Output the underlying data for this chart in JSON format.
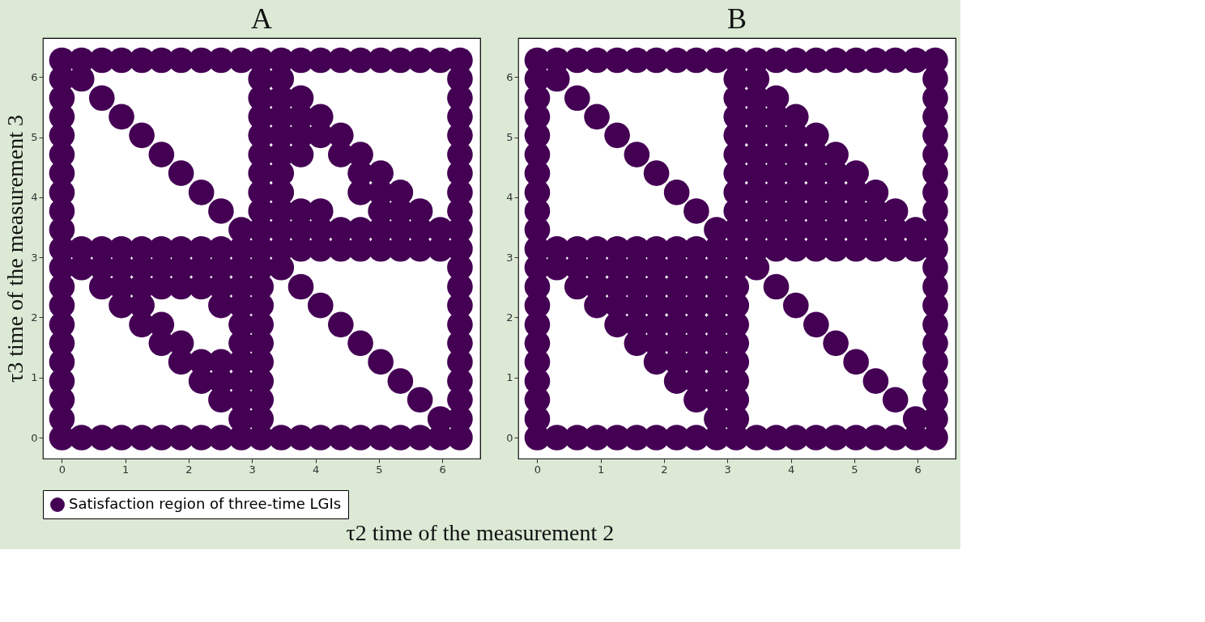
{
  "chart_data": [
    {
      "type": "scatter",
      "title": "A",
      "ylabel": "τ3 time of the measurement 3",
      "xlabel": "τ2 time of the measurement 2",
      "xlim": [
        -0.3,
        6.6
      ],
      "ylim": [
        -0.35,
        6.65
      ],
      "xticks": [
        0,
        1,
        2,
        3,
        4,
        5,
        6
      ],
      "yticks": [
        0,
        1,
        2,
        3,
        4,
        5,
        6
      ],
      "grid": false,
      "marker": "circle",
      "legend": "bottom",
      "series": [
        {
          "name": "Satisfaction region of three-time LGIs",
          "color": "#440154",
          "x": [
            0,
            0,
            0,
            0,
            0,
            0,
            0,
            0,
            0,
            0,
            0,
            0,
            0,
            0,
            0,
            0,
            0,
            0,
            0,
            0,
            0,
            0.31,
            0.31,
            0.31,
            0.31,
            0.31,
            0.63,
            0.63,
            0.63,
            0.63,
            0.63,
            0.63,
            0.94,
            0.94,
            0.94,
            0.94,
            0.94,
            0.94,
            0.94,
            1.26,
            1.26,
            1.26,
            1.26,
            1.26,
            1.26,
            1.26,
            1.26,
            1.57,
            1.57,
            1.57,
            1.57,
            1.57,
            1.57,
            1.57,
            1.57,
            1.88,
            1.88,
            1.88,
            1.88,
            1.88,
            1.88,
            1.88,
            1.88,
            2.2,
            2.2,
            2.2,
            2.2,
            2.2,
            2.2,
            2.2,
            2.2,
            2.51,
            2.51,
            2.51,
            2.51,
            2.51,
            2.51,
            2.51,
            2.51,
            2.51,
            2.51,
            2.83,
            2.83,
            2.83,
            2.83,
            2.83,
            2.83,
            2.83,
            2.83,
            2.83,
            2.83,
            2.83,
            2.83,
            2.83,
            3.14,
            3.14,
            3.14,
            3.14,
            3.14,
            3.14,
            3.14,
            3.14,
            3.14,
            3.14,
            3.14,
            3.14,
            3.14,
            3.14,
            3.14,
            3.14,
            3.14,
            3.14,
            3.14,
            3.14,
            3.14,
            3.46,
            3.46,
            3.46,
            3.46,
            3.46,
            3.46,
            3.46,
            3.46,
            3.46,
            3.46,
            3.46,
            3.46,
            3.46,
            3.77,
            3.77,
            3.77,
            3.77,
            3.77,
            3.77,
            3.77,
            3.77,
            3.77,
            3.77,
            4.08,
            4.08,
            4.08,
            4.08,
            4.08,
            4.08,
            4.08,
            4.08,
            4.4,
            4.4,
            4.4,
            4.4,
            4.4,
            4.4,
            4.4,
            4.71,
            4.71,
            4.71,
            4.71,
            4.71,
            4.71,
            4.71,
            4.71,
            5.03,
            5.03,
            5.03,
            5.03,
            5.03,
            5.03,
            5.03,
            5.03,
            5.34,
            5.34,
            5.34,
            5.34,
            5.34,
            5.34,
            5.34,
            5.65,
            5.65,
            5.65,
            5.65,
            5.65,
            5.65,
            5.97,
            5.97,
            5.97,
            5.97,
            5.97,
            6.28,
            6.28,
            6.28,
            6.28,
            6.28,
            6.28,
            6.28,
            6.28,
            6.28,
            6.28,
            6.28,
            6.28,
            6.28,
            6.28,
            6.28,
            6.28,
            6.28,
            6.28,
            6.28,
            6.28,
            6.28
          ],
          "values": [
            0,
            0.31,
            0.63,
            0.94,
            1.26,
            1.57,
            1.88,
            2.2,
            2.51,
            2.83,
            3.14,
            3.46,
            3.77,
            4.08,
            4.4,
            4.71,
            5.03,
            5.34,
            5.65,
            5.97,
            6.28,
            0,
            2.83,
            3.14,
            5.97,
            6.28,
            0,
            2.51,
            2.83,
            3.14,
            5.65,
            6.28,
            0,
            2.2,
            2.51,
            2.83,
            3.14,
            5.34,
            6.28,
            0,
            1.88,
            2.2,
            2.51,
            2.83,
            3.14,
            5.03,
            6.28,
            0,
            1.57,
            1.88,
            2.51,
            2.83,
            3.14,
            4.71,
            6.28,
            0,
            1.26,
            1.57,
            2.51,
            2.83,
            3.14,
            4.4,
            6.28,
            0,
            0.94,
            1.26,
            2.51,
            2.83,
            3.14,
            4.08,
            6.28,
            0,
            0.63,
            0.94,
            1.26,
            2.2,
            2.51,
            2.83,
            3.14,
            3.77,
            6.28,
            0,
            0.31,
            0.63,
            0.94,
            1.26,
            1.57,
            1.88,
            2.2,
            2.51,
            2.83,
            3.14,
            3.46,
            6.28,
            0,
            0.31,
            0.63,
            0.94,
            1.26,
            1.57,
            1.88,
            2.2,
            2.51,
            2.83,
            3.14,
            3.46,
            3.77,
            4.08,
            4.4,
            4.71,
            5.03,
            5.34,
            5.65,
            5.97,
            6.28,
            0,
            2.83,
            3.14,
            3.46,
            3.77,
            4.08,
            4.4,
            4.71,
            5.03,
            5.34,
            5.65,
            5.97,
            6.28,
            0,
            2.51,
            3.14,
            3.46,
            3.77,
            4.71,
            5.03,
            5.34,
            5.65,
            6.28,
            0,
            2.2,
            3.14,
            3.46,
            3.77,
            5.03,
            5.34,
            6.28,
            0,
            1.88,
            3.14,
            3.46,
            4.71,
            5.03,
            6.28,
            0,
            1.57,
            3.14,
            3.46,
            4.08,
            4.4,
            4.71,
            6.28,
            0,
            1.26,
            3.14,
            3.46,
            3.77,
            4.08,
            4.4,
            6.28,
            0,
            0.94,
            3.14,
            3.46,
            3.77,
            4.08,
            6.28,
            0,
            0.63,
            3.14,
            3.46,
            3.77,
            6.28,
            0,
            0.31,
            3.14,
            3.46,
            6.28,
            0,
            0.31,
            0.63,
            0.94,
            1.26,
            1.57,
            1.88,
            2.2,
            2.51,
            2.83,
            3.14,
            3.46,
            3.77,
            4.08,
            4.4,
            4.71,
            5.03,
            5.34,
            5.65,
            5.97,
            6.28
          ]
        }
      ]
    },
    {
      "type": "scatter",
      "title": "B",
      "xlim": [
        -0.3,
        6.6
      ],
      "ylim": [
        -0.35,
        6.65
      ],
      "xticks": [
        0,
        1,
        2,
        3,
        4,
        5,
        6
      ],
      "yticks": [
        0,
        1,
        2,
        3,
        4,
        5,
        6
      ],
      "grid": false,
      "marker": "circle",
      "series": [
        {
          "color": "#440154",
          "x": [
            0,
            0,
            0,
            0,
            0,
            0,
            0,
            0,
            0,
            0,
            0,
            0,
            0,
            0,
            0,
            0,
            0,
            0,
            0,
            0,
            0,
            0.31,
            0.31,
            0.31,
            0.31,
            0.31,
            0.63,
            0.63,
            0.63,
            0.63,
            0.63,
            0.63,
            0.94,
            0.94,
            0.94,
            0.94,
            0.94,
            0.94,
            0.94,
            1.26,
            1.26,
            1.26,
            1.26,
            1.26,
            1.26,
            1.26,
            1.26,
            1.57,
            1.57,
            1.57,
            1.57,
            1.57,
            1.57,
            1.57,
            1.57,
            1.57,
            1.88,
            1.88,
            1.88,
            1.88,
            1.88,
            1.88,
            1.88,
            1.88,
            1.88,
            1.88,
            2.2,
            2.2,
            2.2,
            2.2,
            2.2,
            2.2,
            2.2,
            2.2,
            2.2,
            2.2,
            2.2,
            2.51,
            2.51,
            2.51,
            2.51,
            2.51,
            2.51,
            2.51,
            2.51,
            2.51,
            2.51,
            2.51,
            2.51,
            2.83,
            2.83,
            2.83,
            2.83,
            2.83,
            2.83,
            2.83,
            2.83,
            2.83,
            2.83,
            2.83,
            2.83,
            2.83,
            3.14,
            3.14,
            3.14,
            3.14,
            3.14,
            3.14,
            3.14,
            3.14,
            3.14,
            3.14,
            3.14,
            3.14,
            3.14,
            3.14,
            3.14,
            3.14,
            3.14,
            3.14,
            3.14,
            3.14,
            3.14,
            3.46,
            3.46,
            3.46,
            3.46,
            3.46,
            3.46,
            3.46,
            3.46,
            3.46,
            3.46,
            3.46,
            3.46,
            3.46,
            3.77,
            3.77,
            3.77,
            3.77,
            3.77,
            3.77,
            3.77,
            3.77,
            3.77,
            3.77,
            3.77,
            3.77,
            4.08,
            4.08,
            4.08,
            4.08,
            4.08,
            4.08,
            4.08,
            4.08,
            4.08,
            4.08,
            4.08,
            4.4,
            4.4,
            4.4,
            4.4,
            4.4,
            4.4,
            4.4,
            4.4,
            4.4,
            4.4,
            4.71,
            4.71,
            4.71,
            4.71,
            4.71,
            4.71,
            4.71,
            4.71,
            4.71,
            5.03,
            5.03,
            5.03,
            5.03,
            5.03,
            5.03,
            5.03,
            5.03,
            5.34,
            5.34,
            5.34,
            5.34,
            5.34,
            5.34,
            5.34,
            5.65,
            5.65,
            5.65,
            5.65,
            5.65,
            5.65,
            5.97,
            5.97,
            5.97,
            5.97,
            5.97,
            6.28,
            6.28,
            6.28,
            6.28,
            6.28,
            6.28,
            6.28,
            6.28,
            6.28,
            6.28,
            6.28,
            6.28,
            6.28,
            6.28,
            6.28,
            6.28,
            6.28,
            6.28,
            6.28,
            6.28,
            6.28
          ],
          "values": [
            0,
            0.31,
            0.63,
            0.94,
            1.26,
            1.57,
            1.88,
            2.2,
            2.51,
            2.83,
            3.14,
            3.46,
            3.77,
            4.08,
            4.4,
            4.71,
            5.03,
            5.34,
            5.65,
            5.97,
            6.28,
            0,
            2.83,
            3.14,
            5.97,
            6.28,
            0,
            2.51,
            2.83,
            3.14,
            5.65,
            6.28,
            0,
            2.2,
            2.51,
            2.83,
            3.14,
            5.34,
            6.28,
            0,
            1.88,
            2.2,
            2.51,
            2.83,
            3.14,
            5.03,
            6.28,
            0,
            1.57,
            1.88,
            2.2,
            2.51,
            2.83,
            3.14,
            4.71,
            6.28,
            0,
            1.26,
            1.57,
            1.88,
            2.2,
            2.51,
            2.83,
            3.14,
            4.4,
            6.28,
            0,
            0.94,
            1.26,
            1.57,
            1.88,
            2.2,
            2.51,
            2.83,
            3.14,
            4.08,
            6.28,
            0,
            0.63,
            0.94,
            1.26,
            1.57,
            1.88,
            2.2,
            2.51,
            2.83,
            3.14,
            3.77,
            6.28,
            0,
            0.31,
            0.63,
            0.94,
            1.26,
            1.57,
            1.88,
            2.2,
            2.51,
            2.83,
            3.14,
            3.46,
            6.28,
            0,
            0.31,
            0.63,
            0.94,
            1.26,
            1.57,
            1.88,
            2.2,
            2.51,
            2.83,
            3.14,
            3.46,
            3.77,
            4.08,
            4.4,
            4.71,
            5.03,
            5.34,
            5.65,
            5.97,
            6.28,
            0,
            2.83,
            3.14,
            3.46,
            3.77,
            4.08,
            4.4,
            4.71,
            5.03,
            5.34,
            5.65,
            5.97,
            6.28,
            0,
            2.51,
            3.14,
            3.46,
            3.77,
            4.08,
            4.4,
            4.71,
            5.03,
            5.34,
            5.65,
            6.28,
            0,
            2.2,
            3.14,
            3.46,
            3.77,
            4.08,
            4.4,
            4.71,
            5.03,
            5.34,
            6.28,
            0,
            1.88,
            3.14,
            3.46,
            3.77,
            4.08,
            4.4,
            4.71,
            5.03,
            6.28,
            0,
            1.57,
            3.14,
            3.46,
            3.77,
            4.08,
            4.4,
            4.71,
            6.28,
            0,
            1.26,
            3.14,
            3.46,
            3.77,
            4.08,
            4.4,
            6.28,
            0,
            0.94,
            3.14,
            3.46,
            3.77,
            4.08,
            6.28,
            0,
            0.63,
            3.14,
            3.46,
            3.77,
            6.28,
            0,
            0.31,
            3.14,
            3.46,
            6.28,
            0,
            0.31,
            0.63,
            0.94,
            1.26,
            1.57,
            1.88,
            2.2,
            2.51,
            2.83,
            3.14,
            3.46,
            3.77,
            4.08,
            4.4,
            4.71,
            5.03,
            5.34,
            5.65,
            5.97,
            6.28
          ]
        }
      ]
    }
  ]
}
